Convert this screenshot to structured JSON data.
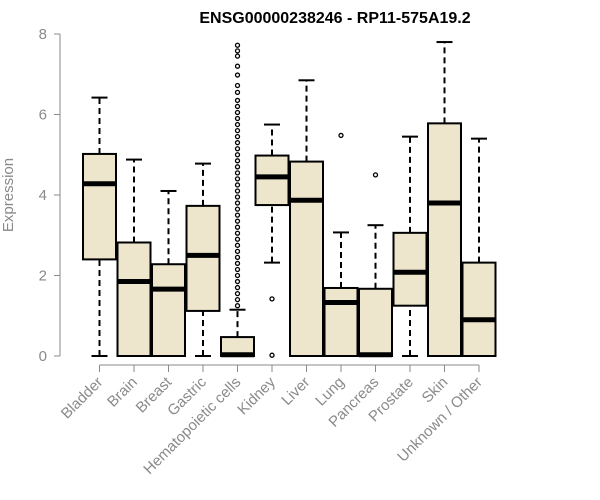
{
  "chart_data": {
    "type": "boxplot",
    "title": "ENSG00000238246 - RP11-575A19.2",
    "xlabel": "",
    "ylabel": "Expression",
    "ylim": [
      0,
      8
    ],
    "yticks": [
      "0",
      "2",
      "4",
      "6",
      "8"
    ],
    "categories": [
      "Bladder",
      "Brain",
      "Breast",
      "Gastric",
      "Hematopoietic cells",
      "Kidney",
      "Liver",
      "Lung",
      "Pancreas",
      "Prostate",
      "Skin",
      "Unknown / Other"
    ],
    "boxes": [
      {
        "min": 0,
        "q1": 2.4,
        "median": 4.28,
        "q3": 5.02,
        "max": 6.42,
        "outliers": []
      },
      {
        "min": 0,
        "q1": 0,
        "median": 1.85,
        "q3": 2.82,
        "max": 4.88,
        "outliers": []
      },
      {
        "min": 0,
        "q1": 0,
        "median": 1.66,
        "q3": 2.28,
        "max": 4.1,
        "outliers": []
      },
      {
        "min": 0,
        "q1": 1.12,
        "median": 2.5,
        "q3": 3.73,
        "max": 4.78,
        "outliers": []
      },
      {
        "min": 0,
        "q1": 0,
        "median": 0.03,
        "q3": 0.47,
        "max": 1.15,
        "outliers": [
          1.25,
          1.4,
          1.55,
          1.7,
          1.85,
          2.0,
          2.15,
          2.3,
          2.45,
          2.6,
          2.75,
          2.9,
          3.05,
          3.2,
          3.35,
          3.5,
          3.65,
          3.8,
          3.95,
          4.1,
          4.25,
          4.4,
          4.55,
          4.7,
          4.85,
          5.0,
          5.15,
          5.3,
          5.45,
          5.6,
          5.75,
          5.9,
          6.05,
          6.2,
          6.35,
          6.55,
          6.72,
          6.98,
          7.2,
          7.45,
          7.58,
          7.72
        ]
      },
      {
        "min": 2.32,
        "q1": 3.75,
        "median": 4.45,
        "q3": 4.98,
        "max": 5.75,
        "outliers": [
          1.42,
          0.02
        ]
      },
      {
        "min": 0,
        "q1": 0,
        "median": 3.87,
        "q3": 4.83,
        "max": 6.85,
        "outliers": []
      },
      {
        "min": 0,
        "q1": 0,
        "median": 1.33,
        "q3": 1.69,
        "max": 3.07,
        "outliers": [
          5.48
        ]
      },
      {
        "min": 0,
        "q1": 0,
        "median": 0.03,
        "q3": 1.67,
        "max": 3.25,
        "outliers": [
          4.5
        ]
      },
      {
        "min": 0,
        "q1": 1.25,
        "median": 2.08,
        "q3": 3.06,
        "max": 5.45,
        "outliers": []
      },
      {
        "min": 0,
        "q1": 0,
        "median": 3.8,
        "q3": 5.78,
        "max": 7.8,
        "outliers": []
      },
      {
        "min": 0,
        "q1": 0,
        "median": 0.9,
        "q3": 2.32,
        "max": 5.4,
        "outliers": []
      }
    ],
    "colors": {
      "box_fill": "#ede6cc",
      "stroke": "#000000",
      "axis": "#8a8a8a"
    }
  }
}
